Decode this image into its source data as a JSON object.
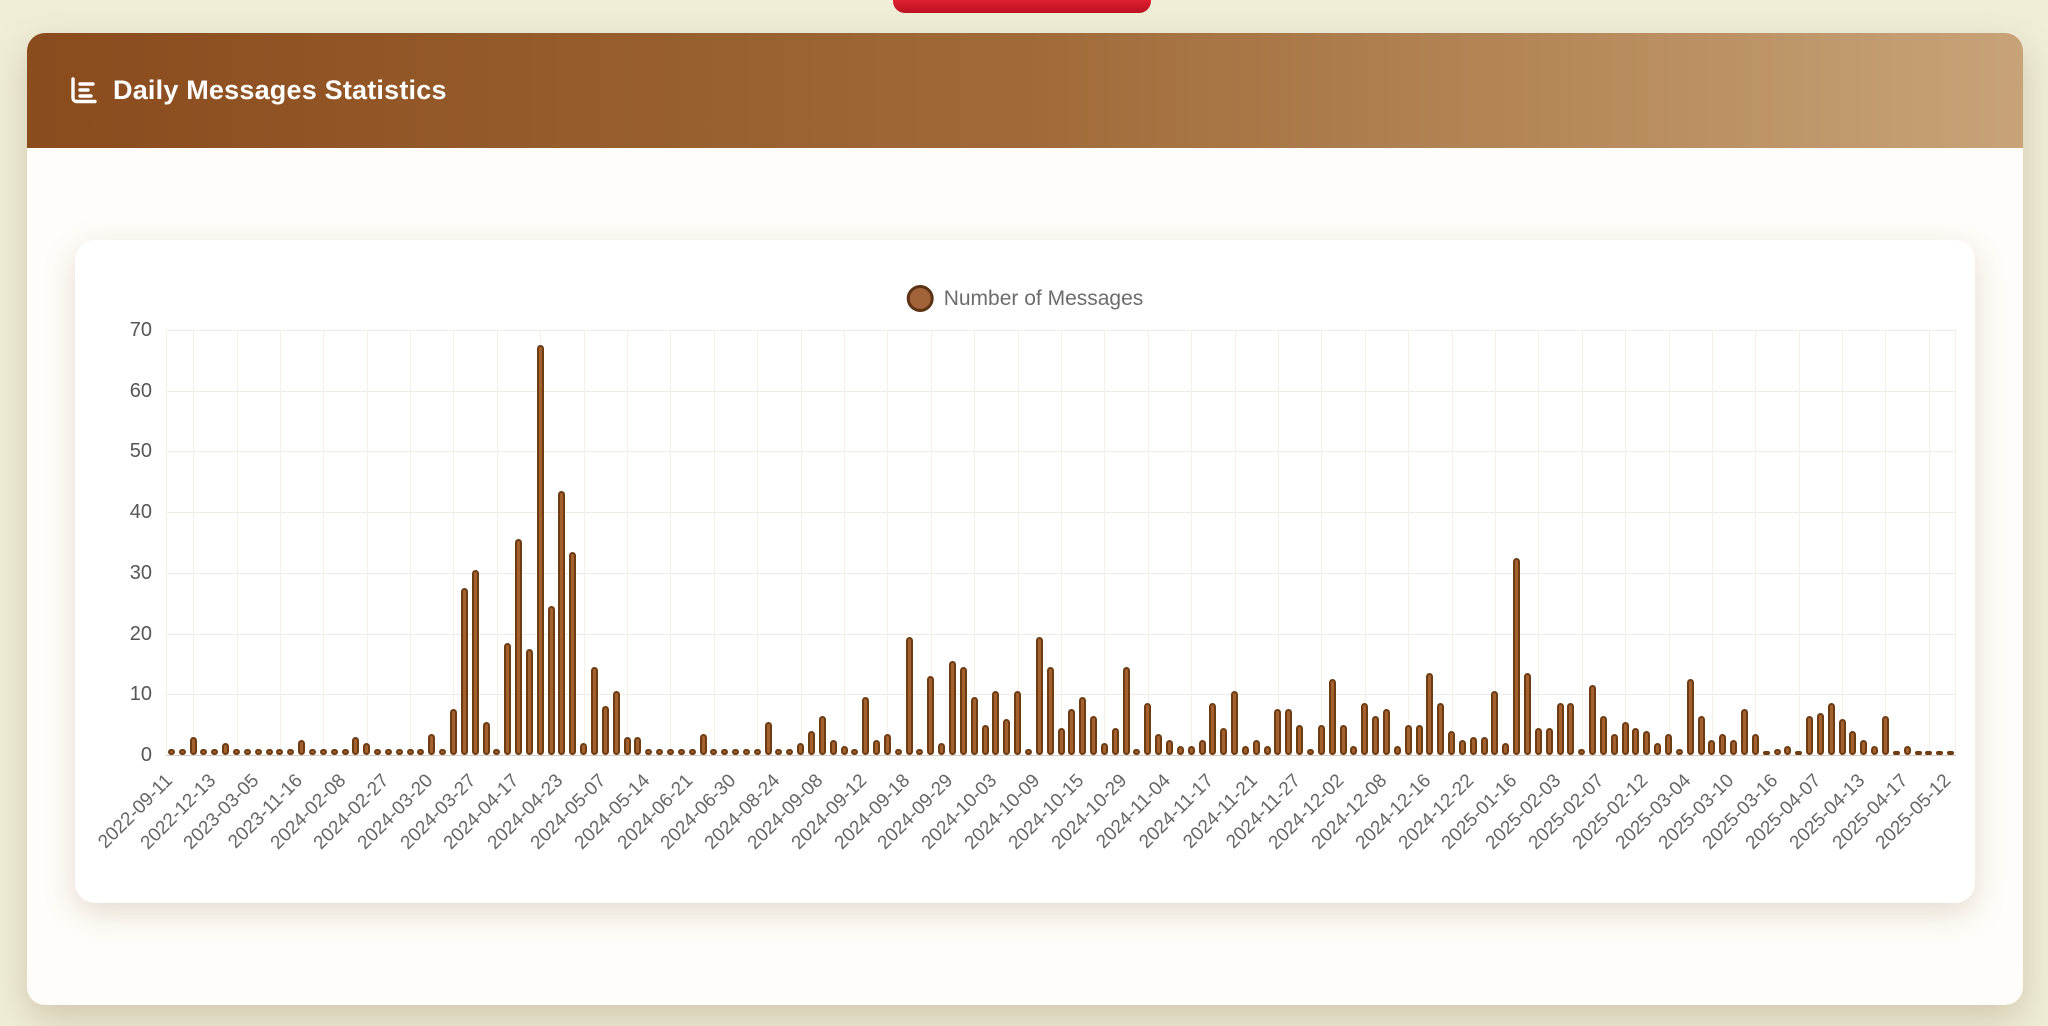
{
  "page": {
    "background": "#f0eed7"
  },
  "top_pill": {
    "color": "#d6192a"
  },
  "panel": {
    "header": {
      "title": "Daily Messages Statistics",
      "icon": "bar-chart-horizontal-icon",
      "gradient_from": "#8a4b1d",
      "gradient_to": "#c8a377"
    }
  },
  "chart_data": {
    "type": "bar",
    "title": "Daily Messages Statistics",
    "legend": {
      "label": "Number of Messages",
      "position": "top-center",
      "marker_fill": "#a2623a",
      "marker_border": "#5c3315"
    },
    "xlabel": "",
    "ylabel": "",
    "ylim": [
      0,
      70
    ],
    "yticks": [
      0,
      10,
      20,
      30,
      40,
      50,
      60,
      70
    ],
    "grid": true,
    "bar_color": "#a4612e",
    "bar_border_color": "#6e3c13",
    "label_interval": 4,
    "x_tick_labels": [
      "2022-09-11",
      "2022-12-13",
      "2023-03-05",
      "2023-11-16",
      "2024-02-08",
      "2024-02-27",
      "2024-03-20",
      "2024-03-27",
      "2024-04-17",
      "2024-04-23",
      "2024-05-07",
      "2024-05-14",
      "2024-06-21",
      "2024-06-30",
      "2024-08-24",
      "2024-09-08",
      "2024-09-12",
      "2024-09-18",
      "2024-09-29",
      "2024-10-03",
      "2024-10-09",
      "2024-10-15",
      "2024-10-29",
      "2024-11-04",
      "2024-11-17",
      "2024-11-21",
      "2024-11-27",
      "2024-12-02",
      "2024-12-08",
      "2024-12-16",
      "2024-12-22",
      "2025-01-16",
      "2025-02-03",
      "2025-02-07",
      "2025-02-12",
      "2025-03-04",
      "2025-03-10",
      "2025-03-16",
      "2025-04-07",
      "2025-04-13",
      "2025-04-17",
      "2025-05-12"
    ],
    "values": [
      1,
      1,
      3,
      1,
      1,
      2,
      1,
      1,
      1,
      1,
      1,
      1,
      2.5,
      1,
      1,
      1,
      1,
      3,
      2,
      1,
      1,
      1,
      1,
      1,
      3.5,
      1,
      7.5,
      27.5,
      30.5,
      5.5,
      1,
      18.5,
      35.5,
      17.5,
      67.5,
      24.5,
      43.5,
      33.5,
      2,
      14.5,
      8,
      10.5,
      3,
      3,
      1,
      1,
      1,
      1,
      1,
      3.5,
      1,
      1,
      1,
      1,
      1,
      5.5,
      1,
      1,
      2,
      4,
      6.5,
      2.5,
      1.5,
      1,
      9.5,
      2.5,
      3.5,
      1,
      19.5,
      1,
      13,
      2,
      15.5,
      14.5,
      9.5,
      5,
      10.5,
      6,
      10.5,
      1,
      19.5,
      14.5,
      4.5,
      7.5,
      9.5,
      6.5,
      2,
      4.5,
      14.5,
      1,
      8.5,
      3.5,
      2.5,
      1.5,
      1.5,
      2.5,
      8.5,
      4.5,
      10.5,
      1.5,
      2.5,
      1.5,
      7.5,
      7.5,
      5,
      1,
      5,
      12.5,
      5,
      1.5,
      8.5,
      6.5,
      7.5,
      1.5,
      5,
      5,
      13.5,
      8.5,
      4,
      2.5,
      3,
      3,
      10.5,
      2,
      32.5,
      13.5,
      4.5,
      4.5,
      8.5,
      8.5,
      1,
      11.5,
      6.5,
      3.5,
      5.5,
      4.5,
      4,
      2,
      3.5,
      1,
      12.5,
      6.5,
      2.5,
      3.5,
      2.5,
      7.5,
      3.5,
      0.5,
      1,
      1.5,
      0.5,
      6.5,
      7,
      8.5,
      6,
      4,
      2.5,
      1.5,
      6.5,
      0.5,
      1.5,
      0.5,
      0.5,
      0.5,
      0.5
    ]
  }
}
